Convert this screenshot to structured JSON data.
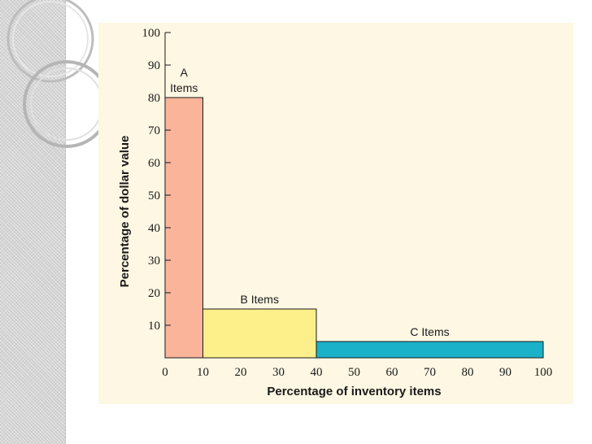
{
  "chart_data": {
    "type": "bar",
    "xlabel": "Percentage of inventory items",
    "ylabel": "Percentage of dollar value",
    "xlim": [
      0,
      100
    ],
    "ylim": [
      0,
      100
    ],
    "x_ticks": [
      0,
      10,
      20,
      30,
      40,
      50,
      60,
      70,
      80,
      90,
      100
    ],
    "y_ticks": [
      10,
      20,
      30,
      40,
      50,
      60,
      70,
      80,
      90,
      100
    ],
    "grid": false,
    "bars": [
      {
        "label_lines": [
          "A",
          "Items"
        ],
        "x_start": 0,
        "x_end": 10,
        "value": 80,
        "color": "#f9b49a"
      },
      {
        "label_lines": [
          "B Items"
        ],
        "x_start": 10,
        "x_end": 40,
        "value": 15,
        "color": "#fdf08a"
      },
      {
        "label_lines": [
          "C Items"
        ],
        "x_start": 40,
        "x_end": 100,
        "value": 5,
        "color": "#1bb1c9"
      }
    ]
  }
}
